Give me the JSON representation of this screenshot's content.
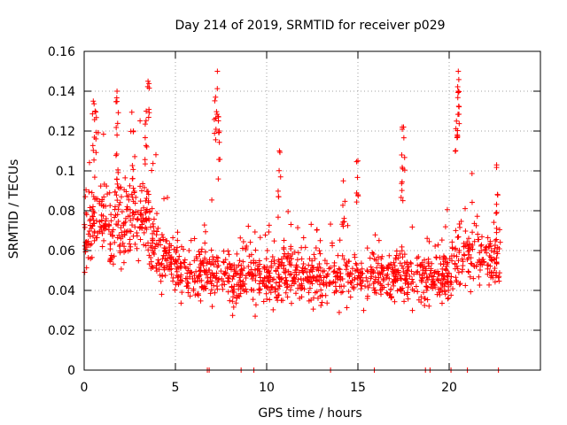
{
  "chart_data": {
    "type": "scatter",
    "title": "Day 214 of 2019, SRMTID for receiver p029",
    "xlabel": "GPS time / hours",
    "ylabel": "SRMTID / TECUs",
    "xlim": [
      0,
      25
    ],
    "ylim": [
      0,
      0.16
    ],
    "x_ticks": [
      0,
      5,
      10,
      15,
      20
    ],
    "y_ticks": [
      0,
      0.02,
      0.04,
      0.06,
      0.08,
      0.1,
      0.12,
      0.14,
      0.16
    ],
    "x_tick_labels": [
      "0",
      "5",
      "10",
      "15",
      "20"
    ],
    "y_tick_labels": [
      "0",
      "0.02",
      "0.04",
      "0.06",
      "0.08",
      "0.1",
      "0.12",
      "0.14",
      "0.16"
    ],
    "grid": true,
    "marker": "+",
    "series": [
      {
        "name": "SRMTID",
        "color": "#ff0000",
        "baseline_points": [
          [
            6.75,
            0
          ],
          [
            6.85,
            0
          ],
          [
            8.6,
            0
          ],
          [
            9.3,
            0
          ],
          [
            13.5,
            0
          ],
          [
            15.9,
            0
          ],
          [
            18.7,
            0
          ],
          [
            18.95,
            0
          ],
          [
            20.1,
            0
          ],
          [
            21.0,
            0
          ],
          [
            22.7,
            0
          ]
        ],
        "envelope": [
          [
            0.0,
            0.065,
            0.015
          ],
          [
            0.5,
            0.072,
            0.02
          ],
          [
            1.0,
            0.075,
            0.02
          ],
          [
            1.5,
            0.072,
            0.02
          ],
          [
            2.0,
            0.075,
            0.02
          ],
          [
            2.5,
            0.075,
            0.02
          ],
          [
            3.0,
            0.078,
            0.022
          ],
          [
            3.5,
            0.08,
            0.025
          ],
          [
            4.0,
            0.06,
            0.015
          ],
          [
            5.0,
            0.052,
            0.012
          ],
          [
            6.0,
            0.048,
            0.012
          ],
          [
            7.0,
            0.05,
            0.014
          ],
          [
            8.0,
            0.045,
            0.012
          ],
          [
            9.0,
            0.048,
            0.012
          ],
          [
            10.0,
            0.045,
            0.012
          ],
          [
            11.0,
            0.048,
            0.012
          ],
          [
            12.0,
            0.048,
            0.012
          ],
          [
            13.0,
            0.045,
            0.012
          ],
          [
            14.0,
            0.048,
            0.012
          ],
          [
            15.0,
            0.048,
            0.012
          ],
          [
            16.0,
            0.046,
            0.012
          ],
          [
            17.0,
            0.048,
            0.012
          ],
          [
            18.0,
            0.046,
            0.012
          ],
          [
            19.0,
            0.044,
            0.012
          ],
          [
            20.0,
            0.05,
            0.014
          ],
          [
            21.0,
            0.058,
            0.014
          ],
          [
            22.0,
            0.056,
            0.014
          ],
          [
            22.8,
            0.054,
            0.014
          ]
        ],
        "spikes": [
          [
            0.5,
            0.135
          ],
          [
            0.6,
            0.13
          ],
          [
            1.8,
            0.14
          ],
          [
            1.8,
            0.118
          ],
          [
            2.7,
            0.12
          ],
          [
            3.5,
            0.145
          ],
          [
            3.4,
            0.13
          ],
          [
            7.3,
            0.15
          ],
          [
            7.2,
            0.137
          ],
          [
            7.4,
            0.12
          ],
          [
            10.7,
            0.11
          ],
          [
            14.2,
            0.095
          ],
          [
            15.0,
            0.105
          ],
          [
            17.5,
            0.122
          ],
          [
            17.4,
            0.108
          ],
          [
            20.5,
            0.15
          ],
          [
            20.5,
            0.14
          ],
          [
            20.4,
            0.125
          ],
          [
            22.6,
            0.103
          ]
        ]
      }
    ]
  }
}
